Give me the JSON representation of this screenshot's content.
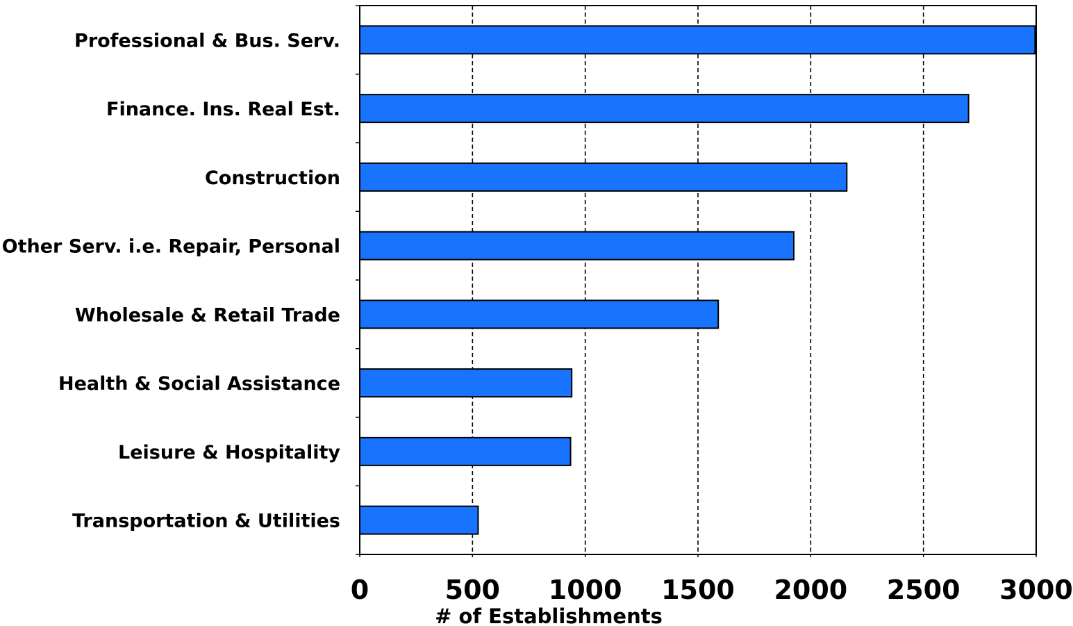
{
  "chart_data": {
    "type": "bar",
    "orientation": "horizontal",
    "categories": [
      "Professional & Bus. Serv.",
      "Finance. Ins. Real Est.",
      "Construction",
      "Other Serv. i.e. Repair, Personal",
      "Wholesale & Retail Trade",
      "Health & Social Assistance",
      "Leisure & Hospitality",
      "Transportation & Utilities"
    ],
    "values": [
      2995,
      2700,
      2160,
      1925,
      1590,
      940,
      935,
      525
    ],
    "xlabel": "# of Establishments",
    "xlim": [
      0,
      3000
    ],
    "xticks": [
      "0",
      "500",
      "1000",
      "1500",
      "2000",
      "2500",
      "3000"
    ],
    "grid": "vertical dashed",
    "bar_color": "#1874FF"
  }
}
